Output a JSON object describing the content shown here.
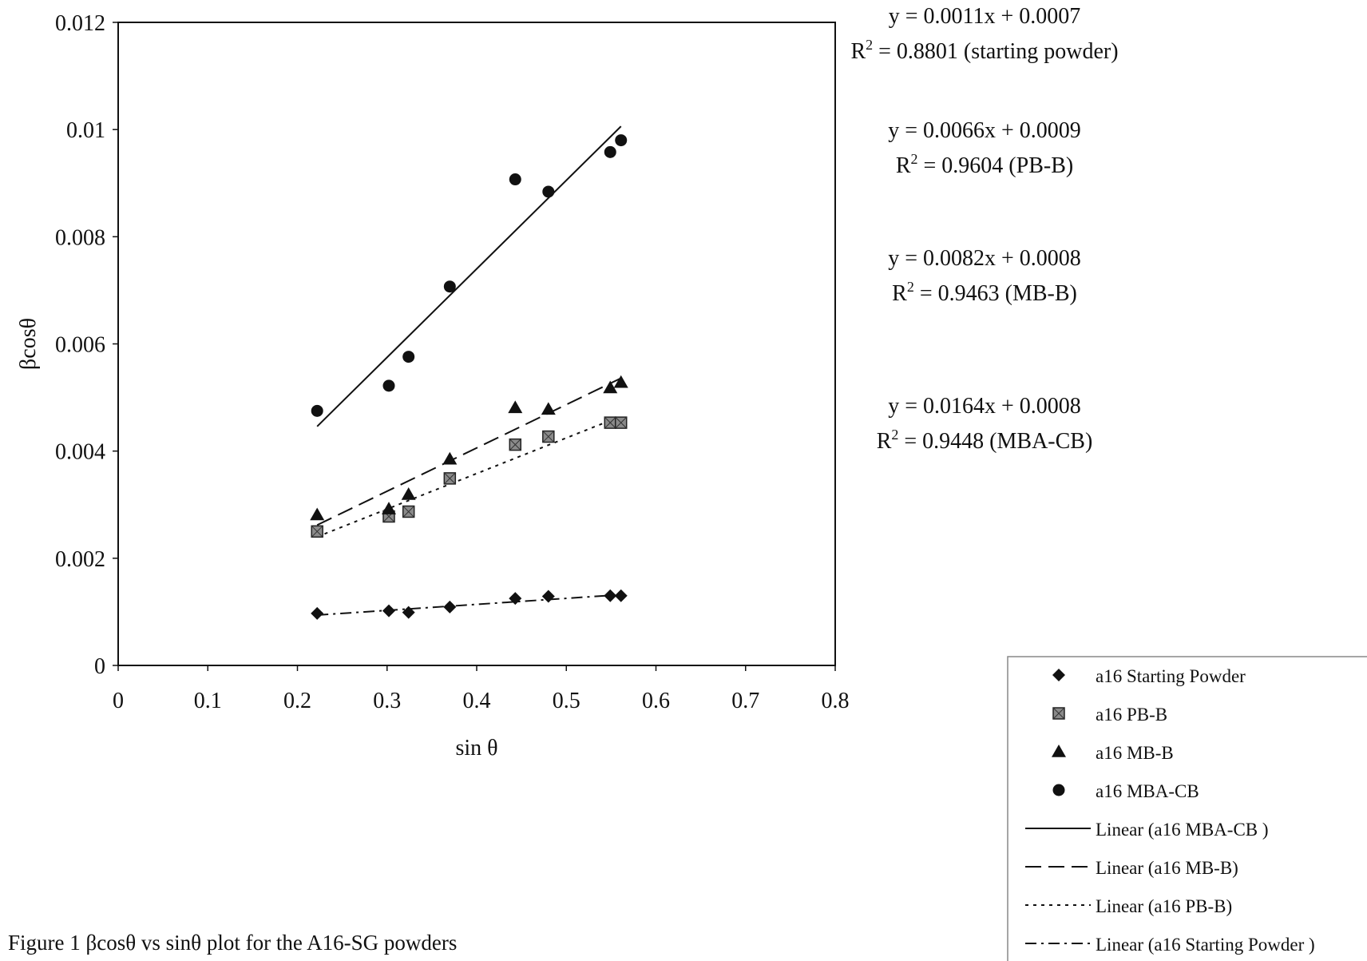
{
  "chart_data": {
    "type": "scatter",
    "xlabel": "sin θ",
    "ylabel": "βcosθ",
    "xlim": [
      0,
      0.8
    ],
    "ylim": [
      0,
      0.012
    ],
    "x_ticks": [
      "0",
      "0.1",
      "0.2",
      "0.3",
      "0.4",
      "0.5",
      "0.6",
      "0.7",
      "0.8"
    ],
    "y_ticks": [
      "0",
      "0.002",
      "0.004",
      "0.006",
      "0.008",
      "0.01",
      "0.012"
    ],
    "grid": false,
    "legend_position": "bottom-right",
    "series": [
      {
        "name": "a16 Starting Powder",
        "marker": "diamond",
        "x": [
          0.222,
          0.302,
          0.324,
          0.37,
          0.443,
          0.48,
          0.549,
          0.561
        ],
        "y": [
          0.00097,
          0.00102,
          0.00099,
          0.00109,
          0.00125,
          0.00129,
          0.0013,
          0.0013
        ]
      },
      {
        "name": "a16 PB-B",
        "marker": "square",
        "x": [
          0.222,
          0.302,
          0.324,
          0.37,
          0.443,
          0.48,
          0.549,
          0.561
        ],
        "y": [
          0.0025,
          0.00278,
          0.00287,
          0.00349,
          0.00412,
          0.00427,
          0.00453,
          0.00453
        ]
      },
      {
        "name": "a16 MB-B",
        "marker": "triangle",
        "x": [
          0.222,
          0.302,
          0.324,
          0.37,
          0.443,
          0.48,
          0.549,
          0.561
        ],
        "y": [
          0.00281,
          0.00292,
          0.00319,
          0.00385,
          0.00481,
          0.00478,
          0.00518,
          0.00528
        ]
      },
      {
        "name": "a16 MBA-CB",
        "marker": "circle",
        "x": [
          0.222,
          0.302,
          0.324,
          0.37,
          0.443,
          0.48,
          0.549,
          0.561
        ],
        "y": [
          0.00475,
          0.00522,
          0.00576,
          0.00707,
          0.00907,
          0.00884,
          0.00958,
          0.0098
        ]
      }
    ],
    "trendlines": [
      {
        "name": "Linear (a16 MBA-CB )",
        "style": "solid",
        "x": [
          0.222,
          0.561
        ],
        "y": [
          0.00446,
          0.01006
        ]
      },
      {
        "name": "Linear (a16 MB-B)",
        "style": "dashed",
        "x": [
          0.222,
          0.561
        ],
        "y": [
          0.00262,
          0.00536
        ]
      },
      {
        "name": "Linear (a16 PB-B)",
        "style": "dotted",
        "x": [
          0.222,
          0.561
        ],
        "y": [
          0.0024,
          0.00465
        ]
      },
      {
        "name": "Linear (a16 Starting Powder )",
        "style": "dashdot",
        "x": [
          0.222,
          0.561
        ],
        "y": [
          0.00094,
          0.00132
        ]
      }
    ],
    "equations": [
      {
        "line1": "y = 0.0011x + 0.0007",
        "r2_prefix": "R",
        "r2_sup": "2",
        "r2_value": " = 0.8801 (starting powder)"
      },
      {
        "line1": "y = 0.0066x + 0.0009",
        "r2_prefix": "R",
        "r2_sup": "2",
        "r2_value": " = 0.9604 (PB-B)"
      },
      {
        "line1": "y = 0.0082x + 0.0008",
        "r2_prefix": "R",
        "r2_sup": "2",
        "r2_value": " = 0.9463 (MB-B)"
      },
      {
        "line1": "y = 0.0164x + 0.0008",
        "r2_prefix": "R",
        "r2_sup": "2",
        "r2_value": " = 0.9448 (MBA-CB)"
      }
    ],
    "legend": [
      {
        "label": "a16 Starting Powder",
        "kind": "marker",
        "marker": "diamond"
      },
      {
        "label": "a16 PB-B",
        "kind": "marker",
        "marker": "square"
      },
      {
        "label": "a16 MB-B",
        "kind": "marker",
        "marker": "triangle"
      },
      {
        "label": "a16 MBA-CB",
        "kind": "marker",
        "marker": "circle"
      },
      {
        "label": "Linear (a16 MBA-CB )",
        "kind": "line",
        "style": "solid"
      },
      {
        "label": "Linear (a16 MB-B)",
        "kind": "line",
        "style": "dashed"
      },
      {
        "label": "Linear (a16 PB-B)",
        "kind": "line",
        "style": "dotted"
      },
      {
        "label": "Linear (a16 Starting Powder )",
        "kind": "line",
        "style": "dashdot"
      }
    ]
  },
  "caption": "Figure 1  βcosθ vs sinθ plot for the A16-SG powders"
}
